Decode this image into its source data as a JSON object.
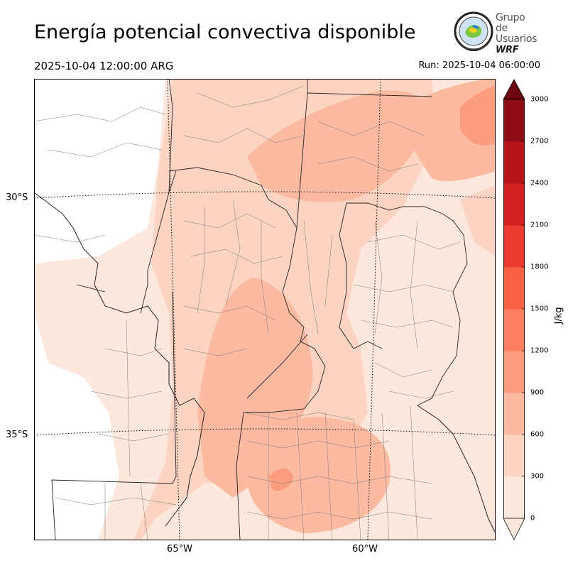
{
  "title": "Energía potencial convectiva disponible",
  "valid_time": "2025-10-04 12:00:00 ARG",
  "run_time": "Run: 2025-10-04 06:00:00",
  "logo": {
    "line1": "Grupo de",
    "line2": "Usuarios",
    "line3": "WRF"
  },
  "axes": {
    "lat_labels": [
      "30°S",
      "35°S"
    ],
    "lon_labels": [
      "65°W",
      "60°W"
    ]
  },
  "colorbar": {
    "unit": "J/kg",
    "ticks": [
      "0",
      "300",
      "600",
      "900",
      "1200",
      "1500",
      "1800",
      "2100",
      "2400",
      "2700",
      "3000"
    ],
    "colors": [
      "#fee8de",
      "#fdd4c2",
      "#fcbba1",
      "#fc9d80",
      "#fc7f5f",
      "#f85f43",
      "#ec3b2e",
      "#d32020",
      "#b51519",
      "#8e0c13",
      "#6b010e"
    ]
  }
}
